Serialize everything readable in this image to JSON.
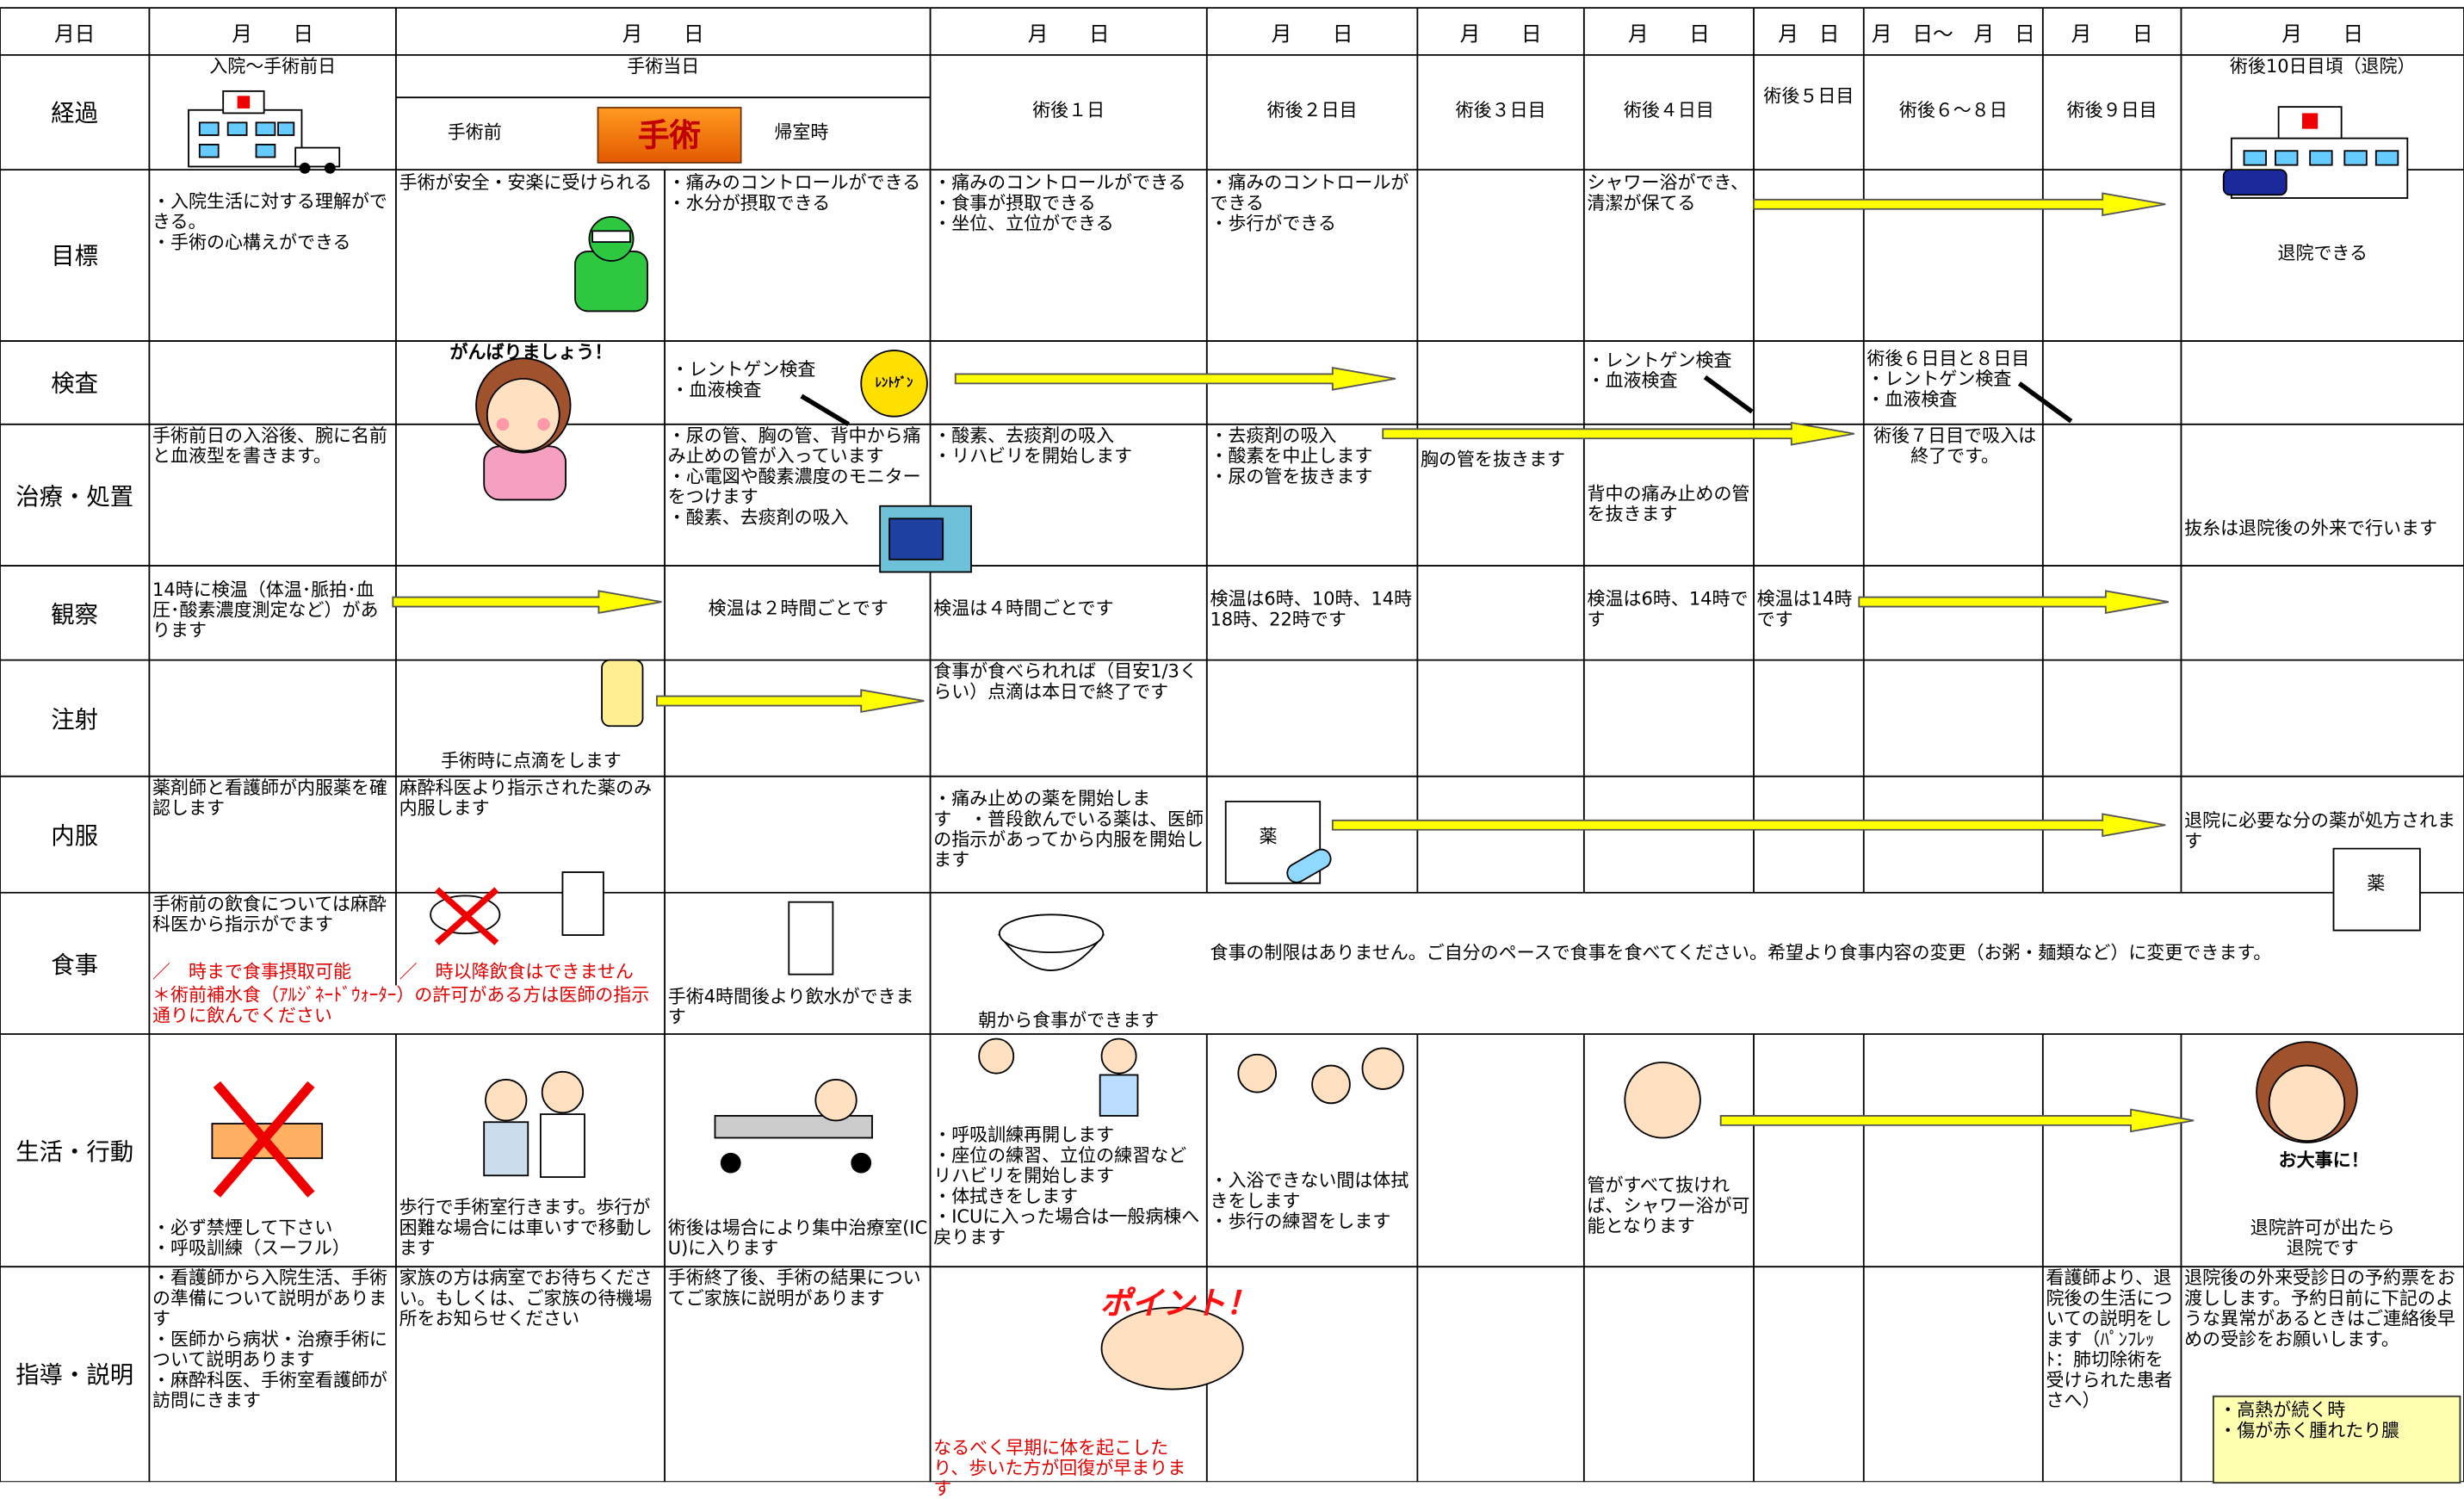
{
  "header": {
    "row_label": "月日",
    "dates": [
      "月　　日",
      "月　　日",
      "月　　日",
      "月　　日",
      "月　　日",
      "月　　日",
      "月　日",
      "月　日～　月　日",
      "月　　日",
      "月　　日"
    ]
  },
  "rows": [
    {
      "label": "経過",
      "texts": [
        "入院～手術前日",
        "手術当日",
        "手術前",
        "手術",
        "帰室時",
        "術後１日",
        "術後２日目",
        "術後３日目",
        "術後４日目",
        "術後５日目",
        "術後６～８日",
        "術後９日目",
        "術後10日目頃（退院）"
      ]
    },
    {
      "label": "目標",
      "texts": [
        "・入院生活に対する理解ができる。\n・手術の心構えができる",
        "手術が安全・安楽に受けられる",
        "・痛みのコントロールができる\n・水分が摂取できる",
        "・痛みのコントロールができる　　　　　　・食事が摂取できる\n・坐位、立位ができる",
        "・痛みのコントロールができる\n・歩行ができる",
        "シャワー浴ができ、清潔が保てる",
        "退院できる"
      ]
    },
    {
      "label": "検査",
      "texts": [
        "がんばりましょう！",
        "・レントゲン検査\n・血液検査",
        "ﾚﾝﾄｹﾞﾝ",
        "・レントゲン検査\n・血液検査",
        "術後６日目と８日目\n・レントゲン検査\n・血液検査"
      ]
    },
    {
      "label": "治療・処置",
      "texts": [
        "手術前日の入浴後、腕に名前と血液型を書きます。",
        "・尿の管、胸の管、背中から痛み止めの管が入っています\n・心電図や酸素濃度のモニターをつけます\n・酸素、去痰剤の吸入",
        "・酸素、去痰剤の吸入\n・リハビリを開始します",
        "・去痰剤の吸入\n・酸素を中止します\n・尿の管を抜きます",
        "胸の管を抜きます",
        "背中の痛み止めの管を抜きます",
        "術後７日目で吸入は終了です。",
        "抜糸は退院後の外来で行います"
      ]
    },
    {
      "label": "観察",
      "texts": [
        "14時に検温（体温･脈拍･血圧･酸素濃度測定など）があります",
        "検温は２時間ごとです",
        "検温は４時間ごとです",
        "検温は6時、10時、14時18時、22時です",
        "検温は6時、14時です",
        "検温は14時です"
      ]
    },
    {
      "label": "注射",
      "texts": [
        "手術時に点滴をします",
        "食事が食べられれば（目安1/3くらい）点滴は本日で終了です"
      ]
    },
    {
      "label": "内服",
      "texts": [
        "薬剤師と看護師が内服薬を確認します",
        "麻酔科医より指示された薬のみ内服します",
        "・痛み止めの薬を開始します　・普段飲んでいる薬は、医師の指示があってから内服を開始します",
        "薬",
        "退院に必要な分の薬が処方されます",
        "薬"
      ]
    },
    {
      "label": "食事",
      "texts": [
        "手術前の飲食については麻酔科医から指示がでます",
        "／　時まで食事摂取可能",
        "／　時以降飲食はできません",
        "＊術前補水食（ｱﾙｼﾞﾈｰﾄﾞｳｫｰﾀｰ）の許可がある方は医師の指示通りに飲んでください",
        "手術4時間後より飲水ができます",
        "朝から食事ができます",
        "食事の制限はありません。ご自分のペースで食事を食べてください。希望より食事内容の変更（お粥・麺類など）に変更できます。"
      ]
    },
    {
      "label": "生活・行動",
      "texts": [
        "・必ず禁煙して下さい\n・呼吸訓練（スーフル）",
        "歩行で手術室行きます。歩行が困難な場合には車いすで移動します",
        "術後は場合により集中治療室(ICU)に入ります",
        "・呼吸訓練再開します\n・座位の練習、立位の練習などリハビリを開始します\n・体拭きをします\n・ICUに入った場合は一般病棟へ戻ります",
        "・入浴できない間は体拭きをします\n・歩行の練習をします",
        "管がすべて抜ければ、シャワー浴が可能となります",
        "お大事に！",
        "退院許可が出たら\n退院です"
      ]
    },
    {
      "label": "指導・説明",
      "texts": [
        "・看護師から入院生活、手術の準備について説明があります\n・医師から病状・治療手術について説明あります\n・麻酔科医、手術室看護師が訪問にきます",
        "家族の方は病室でお待ちください。もしくは、ご家族の待機場所をお知らせください",
        "手術終了後、手術の結果についてご家族に説明があります",
        "ポイント！",
        "なるべく早期に体を起こしたり、歩いた方が回復が早まります",
        "看護師より、退院後の生活についての説明をします（ﾊﾟﾝﾌﾚｯﾄ：肺切除術を受けられた患者さへ）",
        "退院後の外来受診日の予約票をお渡しします。予約日前に下記のような異常があるときはご連絡後早めの受診をお願いします。",
        "・高熱が続く時\n・傷が赤く腫れたり膿"
      ]
    }
  ]
}
